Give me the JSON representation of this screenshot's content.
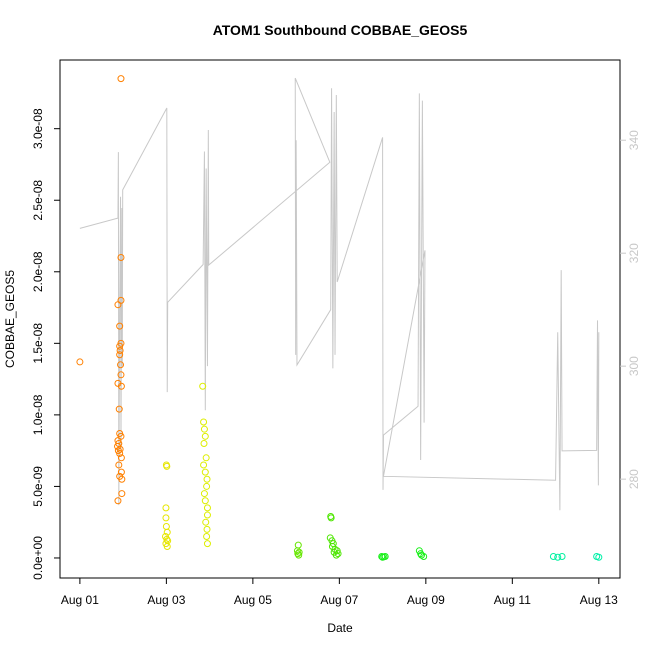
{
  "chart_data": {
    "type": "scatter",
    "title": "ATOM1 Southbound COBBAE_GEOS5",
    "x_label": "Date",
    "y_label": "COBBAE_GEOS5",
    "xlim": [
      -0.46,
      12.49
    ],
    "ylim": [
      -1.4e-09,
      3.48e-08
    ],
    "y2lim": [
      262.5,
      354.2
    ],
    "xticks": [
      {
        "value": 0,
        "label": "Aug 01"
      },
      {
        "value": 2,
        "label": "Aug 03"
      },
      {
        "value": 4,
        "label": "Aug 05"
      },
      {
        "value": 6,
        "label": "Aug 07"
      },
      {
        "value": 8,
        "label": "Aug 09"
      },
      {
        "value": 10,
        "label": "Aug 11"
      },
      {
        "value": 12,
        "label": "Aug 13"
      }
    ],
    "yticks": [
      {
        "value": 0,
        "label": "0.0e+00"
      },
      {
        "value": 5e-09,
        "label": "5.0e-09"
      },
      {
        "value": 1e-08,
        "label": "1.0e-08"
      },
      {
        "value": 1.5e-08,
        "label": "1.5e-08"
      },
      {
        "value": 2e-08,
        "label": "2.0e-08"
      },
      {
        "value": 2.5e-08,
        "label": "2.5e-08"
      },
      {
        "value": 3e-08,
        "label": "3.0e-08"
      }
    ],
    "y2ticks": [
      280,
      300,
      320,
      340
    ],
    "y2_color": "#c8c8c8",
    "series": [
      {
        "color": "#FF8000",
        "x": [
          0,
          0.95,
          0.95,
          0.95,
          0.88,
          0.92,
          0.95,
          0.92,
          0.93,
          0.92,
          0.94,
          0.95,
          0.88,
          0.96,
          0.91,
          0.92,
          0.95,
          0.88,
          0.9,
          0.87,
          0.93,
          0.89,
          0.92,
          0.96,
          0.9,
          0.96,
          0.92,
          0.97,
          0.97,
          0.88
        ],
        "values": [
          1.37e-08,
          3.35e-08,
          2.1e-08,
          1.8e-08,
          1.77e-08,
          1.62e-08,
          1.5e-08,
          1.48e-08,
          1.45e-08,
          1.42e-08,
          1.35e-08,
          1.28e-08,
          1.22e-08,
          1.2e-08,
          1.04e-08,
          8.7e-09,
          8.5e-09,
          8.2e-09,
          8e-09,
          7.8e-09,
          7.6e-09,
          7.5e-09,
          7.3e-09,
          7e-09,
          6.5e-09,
          6e-09,
          5.7e-09,
          5.5e-09,
          4.5e-09,
          4e-09
        ]
      },
      {
        "color": "#E6E600",
        "x": [
          2.0,
          2.01,
          1.99,
          1.99,
          2.0,
          2.02,
          1.98,
          2.01,
          2.03,
          1.99,
          2.02
        ],
        "values": [
          6.5e-09,
          6.4e-09,
          3.5e-09,
          2.8e-09,
          2.2e-09,
          1.8e-09,
          1.5e-09,
          1.3e-09,
          1.2e-09,
          1e-09,
          8e-10
        ]
      },
      {
        "color": "#DDEE00",
        "x": [
          2.84,
          2.86,
          2.88,
          2.9,
          2.87,
          2.92,
          2.86,
          2.9,
          2.94,
          2.93,
          2.88,
          2.9,
          2.95,
          2.95,
          2.91,
          2.94,
          2.93,
          2.95
        ],
        "values": [
          1.2e-08,
          9.5e-09,
          9e-09,
          8.5e-09,
          8e-09,
          7e-09,
          6.5e-09,
          6e-09,
          5.5e-09,
          5e-09,
          4.5e-09,
          4e-09,
          3.5e-09,
          3e-09,
          2.5e-09,
          2e-09,
          1.5e-09,
          1e-09
        ]
      },
      {
        "color": "#66E600",
        "x": [
          5.05,
          5.03,
          5.07,
          5.04,
          5.06
        ],
        "values": [
          9e-10,
          5e-10,
          4e-10,
          3e-10,
          2e-10
        ]
      },
      {
        "color": "#4DE600",
        "x": [
          5.8,
          5.81,
          5.79,
          5.83,
          5.86,
          5.84,
          5.9,
          5.95,
          5.88,
          5.97,
          5.93
        ],
        "values": [
          2.9e-09,
          2.8e-09,
          1.4e-09,
          1.2e-09,
          1e-09,
          8e-10,
          6e-10,
          5e-10,
          4e-10,
          3e-10,
          2e-10
        ]
      },
      {
        "color": "#1AF01A",
        "x": [
          6.98,
          7.0,
          7.03,
          7.06
        ],
        "values": [
          1e-10,
          5e-11,
          8e-11,
          1e-10
        ]
      },
      {
        "color": "#1AF01A",
        "x": [
          7.85,
          7.88,
          7.9,
          7.95
        ],
        "values": [
          5e-10,
          3e-10,
          2e-10,
          1e-10
        ]
      },
      {
        "color": "#00F0A0",
        "x": [
          10.95,
          11.05,
          11.15
        ],
        "values": [
          1e-10,
          5e-11,
          1e-10
        ]
      },
      {
        "color": "#00F0A8",
        "x": [
          11.95,
          12.0
        ],
        "values": [
          1e-10,
          5e-11
        ]
      },
      {
        "color": "#c8c8c8",
        "type": "line",
        "axis": "y2",
        "x": [
          0,
          0.88,
          0.89,
          0.9,
          0.92,
          0.94,
          0.95,
          0.97,
          0.98,
          0.99,
          2.01,
          2.02,
          2.03,
          2.85,
          2.88,
          2.9,
          2.92,
          2.95,
          2.97,
          2.98,
          5.78,
          4.98,
          4.99,
          5.0,
          5.01,
          5.02,
          5.8,
          5.82,
          5.85,
          5.88,
          5.9,
          5.93,
          5.95,
          7.0,
          7.01,
          7.02,
          7.82,
          7.85,
          7.88,
          7.92,
          7.96,
          7.98,
          7.02,
          11.0,
          11.05,
          11.1,
          11.13,
          11.15,
          11.95,
          11.97,
          11.99,
          12.0
        ],
        "values": [
          324.4,
          326.2,
          337.9,
          275.4,
          310,
          330,
          285,
          328,
          300,
          331.2,
          345.7,
          295.4,
          311.3,
          318,
          338,
          292.2,
          335,
          300,
          341.8,
          317.9,
          336.1,
          351.0,
          302,
          340,
          322.3,
          300.2,
          310,
          349.2,
          299.6,
          345,
          302,
          348,
          314.9,
          340.5,
          278.1,
          287.8,
          292.9,
          348.3,
          283.4,
          347,
          290,
          320.5,
          280.5,
          279.8,
          306,
          274.5,
          317,
          285,
          285.1,
          308.1,
          278.9,
          306
        ]
      }
    ]
  }
}
